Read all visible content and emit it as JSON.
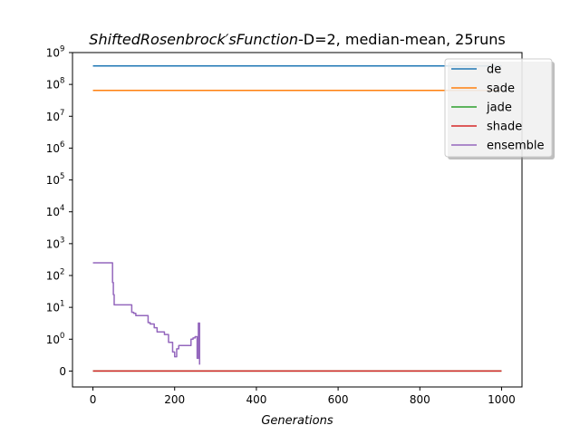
{
  "chart_data": {
    "type": "line",
    "title": {
      "italic": "ShiftedRosenbrock′sFunction",
      "plain": "-D=2, median-mean, 25runs"
    },
    "xlabel": "Generations",
    "ylabel": "",
    "xlim": [
      -50,
      1050
    ],
    "xticks": [
      0,
      200,
      400,
      600,
      800,
      1000
    ],
    "yscale": "symlog",
    "ylim": [
      -0.5,
      1000000000
    ],
    "yticks": [
      {
        "value": 0,
        "base": "0",
        "exp": ""
      },
      {
        "value": 1,
        "base": "10",
        "exp": "0"
      },
      {
        "value": 10,
        "base": "10",
        "exp": "1"
      },
      {
        "value": 100,
        "base": "10",
        "exp": "2"
      },
      {
        "value": 1000,
        "base": "10",
        "exp": "3"
      },
      {
        "value": 10000,
        "base": "10",
        "exp": "4"
      },
      {
        "value": 100000,
        "base": "10",
        "exp": "5"
      },
      {
        "value": 1000000,
        "base": "10",
        "exp": "6"
      },
      {
        "value": 10000000,
        "base": "10",
        "exp": "7"
      },
      {
        "value": 100000000,
        "base": "10",
        "exp": "8"
      },
      {
        "value": 1000000000,
        "base": "10",
        "exp": "9"
      }
    ],
    "grid": false,
    "legend_position": "top-right",
    "series": [
      {
        "name": "de",
        "color": "#1f77b4",
        "x": [
          0,
          1000
        ],
        "y": [
          380000000,
          380000000
        ]
      },
      {
        "name": "sade",
        "color": "#ff7f0e",
        "x": [
          0,
          1000
        ],
        "y": [
          65000000,
          65000000
        ]
      },
      {
        "name": "jade",
        "color": "#2ca02c",
        "x": [
          0,
          1000
        ],
        "y": [
          0,
          0
        ]
      },
      {
        "name": "shade",
        "color": "#d62728",
        "x": [
          0,
          1000
        ],
        "y": [
          0,
          0
        ]
      },
      {
        "name": "ensemble",
        "color": "#9467bd",
        "x": [
          0,
          48,
          48,
          50,
          50,
          52,
          52,
          95,
          95,
          100,
          100,
          105,
          105,
          135,
          135,
          140,
          140,
          150,
          150,
          157,
          157,
          175,
          175,
          185,
          185,
          195,
          195,
          200,
          200,
          205,
          205,
          210,
          210,
          240,
          240,
          245,
          245,
          250,
          250,
          255,
          255,
          258,
          258,
          261,
          261
        ],
        "y": [
          250,
          250,
          60,
          60,
          25,
          25,
          12,
          12,
          7,
          7,
          6.5,
          6.5,
          5.5,
          5.5,
          3.3,
          3.3,
          3,
          3,
          2.3,
          2.3,
          1.7,
          1.7,
          1.4,
          1.4,
          0.9,
          0.9,
          0.6,
          0.6,
          0.45,
          0.45,
          0.7,
          0.7,
          0.8,
          0.8,
          1,
          1,
          1.1,
          1.1,
          1.2,
          1.2,
          0.4,
          0.4,
          3.2,
          3.2,
          0.2
        ]
      }
    ]
  }
}
